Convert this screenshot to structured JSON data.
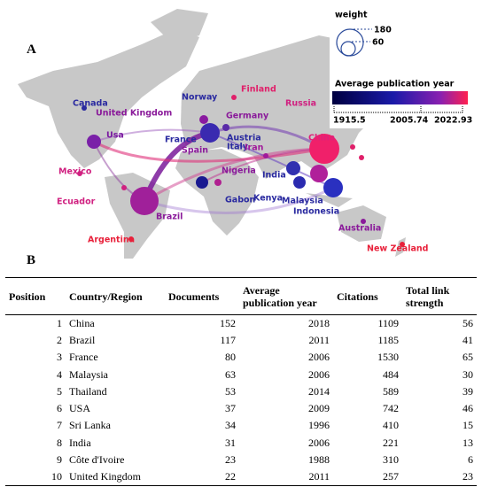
{
  "panel_a": {
    "label": "A",
    "legend": {
      "size_title": "weight",
      "size_labels": [
        "180",
        "60"
      ],
      "color_title": "Average publication year",
      "color_labels": [
        "1915.5",
        "2005.74",
        "2022.93"
      ]
    },
    "countries": [
      {
        "name": "Canada",
        "color": "#2a2aa0"
      },
      {
        "name": "United Kingdom",
        "color": "#8a1a9a"
      },
      {
        "name": "Norway",
        "color": "#2a2aa0"
      },
      {
        "name": "Finland",
        "color": "#e0206a"
      },
      {
        "name": "Germany",
        "color": "#8a1a9a"
      },
      {
        "name": "Russia",
        "color": "#d02080"
      },
      {
        "name": "Usa",
        "color": "#7a1aa0"
      },
      {
        "name": "France",
        "color": "#2a2aa0"
      },
      {
        "name": "Austria",
        "color": "#2a2aa0"
      },
      {
        "name": "Spain",
        "color": "#8a1a9a"
      },
      {
        "name": "Italy",
        "color": "#2a2aa0"
      },
      {
        "name": "Iran",
        "color": "#a01a9a"
      },
      {
        "name": "China",
        "color": "#e0207a"
      },
      {
        "name": "Mexico",
        "color": "#d02080"
      },
      {
        "name": "Nigeria",
        "color": "#8a1a9a"
      },
      {
        "name": "India",
        "color": "#2a2aa0"
      },
      {
        "name": "Ecuador",
        "color": "#d02080"
      },
      {
        "name": "Gabon",
        "color": "#2a2aa0"
      },
      {
        "name": "Kenya",
        "color": "#2a2aa0"
      },
      {
        "name": "Malaysia",
        "color": "#2a2aa0"
      },
      {
        "name": "Indonesia",
        "color": "#2a2aa0"
      },
      {
        "name": "Brazil",
        "color": "#8a1a9a"
      },
      {
        "name": "Argentina",
        "color": "#e8203a"
      },
      {
        "name": "Australia",
        "color": "#8a1a9a"
      },
      {
        "name": "New Zealand",
        "color": "#e8203a"
      }
    ]
  },
  "panel_b": {
    "label": "B",
    "table": {
      "header": [
        "Position",
        "Country/Region",
        "Documents",
        "Average publication year",
        "Citations",
        "Total link strength"
      ],
      "rows": [
        [
          1,
          "China",
          152,
          2018,
          1109,
          56
        ],
        [
          2,
          "Brazil",
          117,
          2011,
          1185,
          41
        ],
        [
          3,
          "France",
          80,
          2006,
          1530,
          65
        ],
        [
          4,
          "Malaysia",
          63,
          2006,
          484,
          30
        ],
        [
          5,
          "Thailand",
          53,
          2014,
          589,
          39
        ],
        [
          6,
          "USA",
          37,
          2009,
          742,
          46
        ],
        [
          7,
          "Sri Lanka",
          34,
          1996,
          410,
          15
        ],
        [
          8,
          "India",
          31,
          2006,
          221,
          13
        ],
        [
          9,
          "Côte d'Ivoire",
          23,
          1988,
          310,
          6
        ],
        [
          10,
          "United Kingdom",
          22,
          2011,
          257,
          23
        ]
      ]
    }
  }
}
